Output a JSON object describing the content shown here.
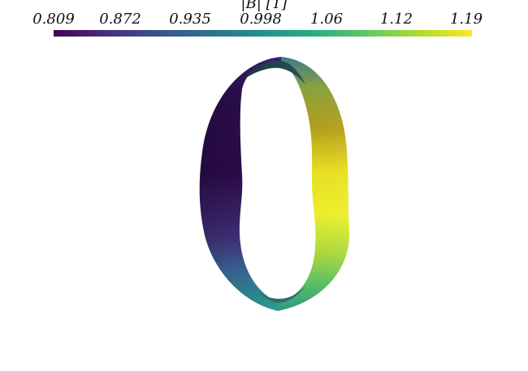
{
  "colorbar": {
    "title": "|B| [T]",
    "ticks": [
      "0.809",
      "0.872",
      "0.935",
      "0.998",
      "1.06",
      "1.12",
      "1.19"
    ],
    "colormap": "viridis",
    "min": 0.809,
    "max": 1.19,
    "stops": [
      "#440154",
      "#472d7b",
      "#3b528b",
      "#2c728e",
      "#21918c",
      "#28ae80",
      "#5ec962",
      "#addc30",
      "#fde725"
    ]
  },
  "render": {
    "object": "twisted-ring-surface",
    "colors": {
      "low": "#440154",
      "mid": "#21918c",
      "high": "#fde725",
      "background": "#ffffff"
    }
  }
}
